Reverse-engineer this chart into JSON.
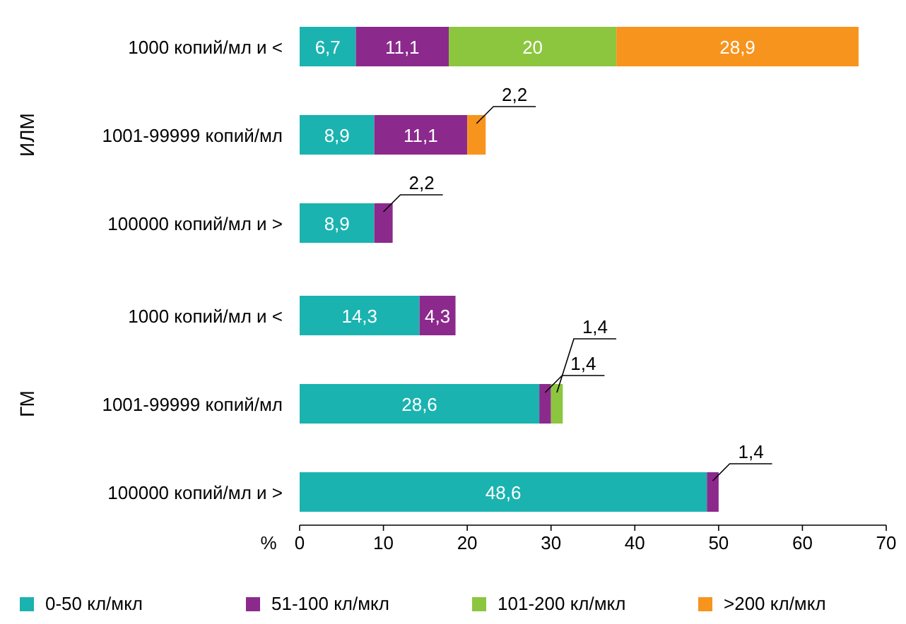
{
  "chart_data": {
    "type": "bar",
    "orientation": "horizontal",
    "stacked": true,
    "categories": [
      "1000 копий/мл и <",
      "1001-99999 копий/мл",
      "100000 копий/мл и >",
      "1000 копий/мл и <",
      "1001-99999 копий/мл",
      "100000 копий/мл и >"
    ],
    "series": [
      {
        "name": "0-50 кл/мкл",
        "color": "#1ab3b0",
        "values": [
          6.7,
          8.9,
          8.9,
          14.3,
          28.6,
          48.6
        ],
        "value_labels": [
          "6,7",
          "8,9",
          "8,9",
          "14,3",
          "28,6",
          "48,6"
        ]
      },
      {
        "name": "51-100 кл/мкл",
        "color": "#8b2a8c",
        "values": [
          11.1,
          11.1,
          2.2,
          4.3,
          1.4,
          1.4
        ],
        "value_labels": [
          "11,1",
          "11,1",
          "2,2",
          "4,3",
          "1,4",
          "1,4"
        ]
      },
      {
        "name": "101-200 кл/мкл",
        "color": "#8cc63f",
        "values": [
          20,
          null,
          null,
          null,
          1.4,
          null
        ],
        "value_labels": [
          "20",
          null,
          null,
          null,
          "1,4",
          null
        ]
      },
      {
        "name": ">200 кл/мкл",
        "color": "#f7941d",
        "values": [
          28.9,
          2.2,
          null,
          null,
          null,
          null
        ],
        "value_labels": [
          "28,9",
          "2,2",
          null,
          null,
          null,
          null
        ]
      }
    ],
    "xlim": [
      0,
      70
    ],
    "xticks": [
      0,
      10,
      20,
      30,
      40,
      50,
      60,
      70
    ],
    "xlabel": "%",
    "annotations": [
      "ИЛМ",
      "ГМ"
    ],
    "legend": "bottom",
    "grid": false
  }
}
